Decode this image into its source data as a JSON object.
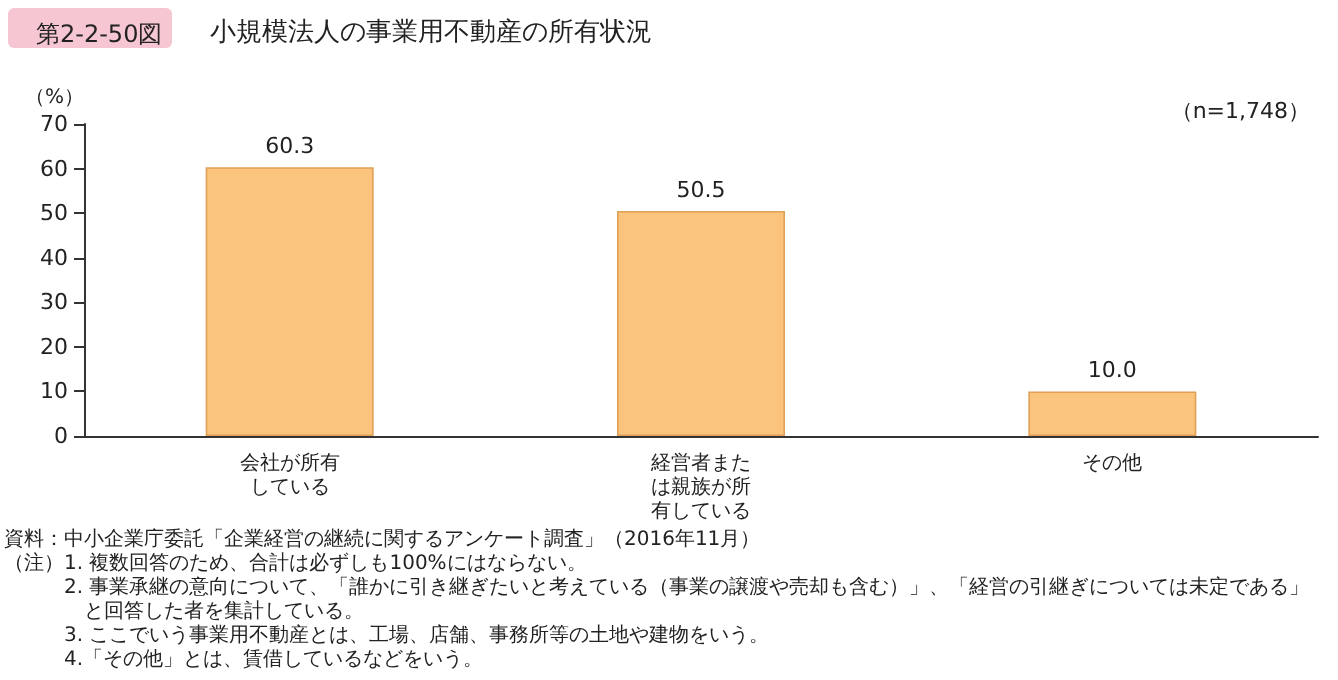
{
  "chart_data": {
    "type": "bar",
    "title": "第2-2-50図",
    "subtitle": "小規模法人の事業用不動産の所有状況",
    "ylabel": "（%）",
    "categories": [
      "会社が所有している",
      "経営者または親族が所有している",
      "その他"
    ],
    "values": [
      60.3,
      50.5,
      10.0
    ],
    "color": "#fac47e",
    "value_labels": [
      "60.3",
      "50.5",
      "10.0"
    ],
    "ylim": [
      0,
      70
    ],
    "yticks": [
      0,
      10,
      20,
      30,
      40,
      50,
      60,
      70
    ],
    "grid": false,
    "annotations": [
      "（n=1,748）",
      "資料：中小企業庁委託「企業経営の継続に関するアンケート調査」（2016年11月）",
      "（注）1. 複数回答のため、合計は必ずしも100%にはならない。",
      "2. 事業承継の意向について、「誰かに引き継ぎたいと考えている（事業の譲渡や売却も含む）」、「経営の引継ぎについては未定である」",
      "と回答した者を集計している。",
      "3. ここでいう事業用不動産とは、工場、店舗、事務所等の土地や建物をいう。",
      "4.「その他」とは、賃借しているなどをいう。"
    ]
  }
}
